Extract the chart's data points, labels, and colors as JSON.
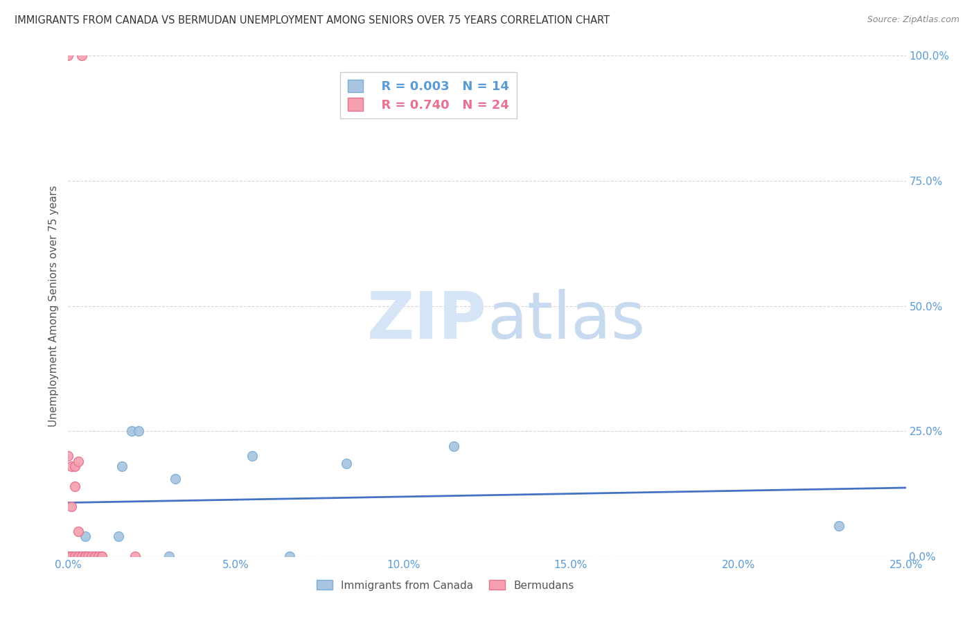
{
  "title": "IMMIGRANTS FROM CANADA VS BERMUDAN UNEMPLOYMENT AMONG SENIORS OVER 75 YEARS CORRELATION CHART",
  "source": "Source: ZipAtlas.com",
  "ylabel": "Unemployment Among Seniors over 75 years",
  "xlim": [
    0.0,
    0.25
  ],
  "ylim": [
    0.0,
    1.0
  ],
  "xtick_labels": [
    "0.0%",
    "5.0%",
    "10.0%",
    "15.0%",
    "20.0%",
    "25.0%"
  ],
  "xtick_values": [
    0.0,
    0.05,
    0.1,
    0.15,
    0.2,
    0.25
  ],
  "ytick_labels": [
    "0.0%",
    "25.0%",
    "50.0%",
    "75.0%",
    "100.0%"
  ],
  "ytick_values": [
    0.0,
    0.25,
    0.5,
    0.75,
    1.0
  ],
  "blue_color": "#a8c4e0",
  "pink_color": "#f4a0b0",
  "blue_edge_color": "#7bafd4",
  "pink_edge_color": "#e87090",
  "blue_line_color": "#4472c4",
  "pink_line_color": "#e87090",
  "title_color": "#333333",
  "axis_color": "#5b9bd5",
  "watermark_color_zip": "#d5e5f5",
  "watermark_color_atlas": "#c8daf0",
  "legend_r_blue": "R = 0.003",
  "legend_n_blue": "N = 14",
  "legend_r_pink": "R = 0.740",
  "legend_n_pink": "N = 24",
  "blue_x": [
    0.001,
    0.005,
    0.005,
    0.015,
    0.016,
    0.019,
    0.021,
    0.03,
    0.032,
    0.055,
    0.066,
    0.083,
    0.115,
    0.23
  ],
  "blue_y": [
    0.0,
    0.04,
    0.0,
    0.04,
    0.18,
    0.25,
    0.25,
    0.0,
    0.155,
    0.2,
    0.0,
    0.185,
    0.22,
    0.06
  ],
  "pink_x": [
    0.0,
    0.0,
    0.0,
    0.0,
    0.001,
    0.001,
    0.001,
    0.002,
    0.002,
    0.002,
    0.003,
    0.003,
    0.003,
    0.004,
    0.004,
    0.005,
    0.005,
    0.006,
    0.007,
    0.008,
    0.009,
    0.01,
    0.01,
    0.02
  ],
  "pink_y": [
    0.0,
    0.0,
    1.0,
    0.2,
    0.0,
    0.1,
    0.18,
    0.0,
    0.14,
    0.18,
    0.0,
    0.05,
    0.19,
    0.0,
    1.0,
    0.0,
    0.0,
    0.0,
    0.0,
    0.0,
    0.0,
    0.0,
    0.0,
    0.0
  ],
  "marker_size": 100,
  "grid_color": "#cccccc",
  "background_color": "#ffffff"
}
